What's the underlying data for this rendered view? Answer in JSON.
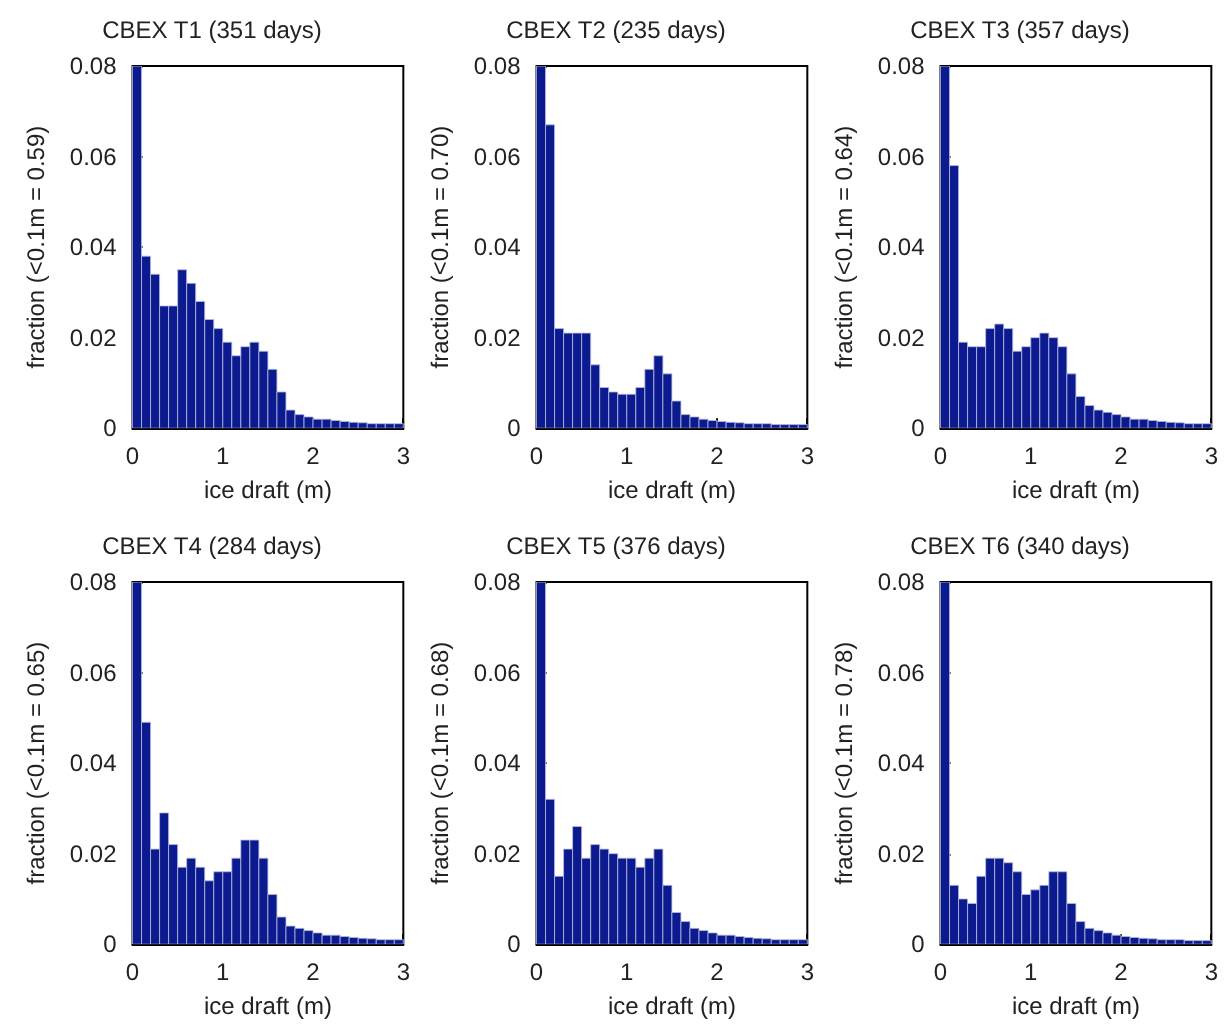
{
  "chart_data": [
    {
      "type": "histogram",
      "title": "CBEX T1 (351 days)",
      "xlabel": "ice draft (m)",
      "ylabel": "fraction (<0.1m = 0.59)",
      "color": "#0b1a8e",
      "bins": [
        0,
        0.1,
        0.2,
        0.3,
        0.4,
        0.5,
        0.6,
        0.7,
        0.8,
        0.9,
        1,
        1.1,
        1.2,
        1.3,
        1.4,
        1.5,
        1.6,
        1.7,
        1.8,
        1.9,
        2,
        2.1,
        2.2,
        2.3,
        2.4,
        2.5,
        2.6,
        2.7,
        2.8,
        2.9,
        3
      ],
      "values": [
        0.08,
        0.038,
        0.034,
        0.027,
        0.027,
        0.035,
        0.032,
        0.028,
        0.024,
        0.022,
        0.019,
        0.016,
        0.018,
        0.019,
        0.017,
        0.013,
        0.008,
        0.004,
        0.003,
        0.0025,
        0.002,
        0.002,
        0.0017,
        0.0015,
        0.0013,
        0.0012,
        0.001,
        0.001,
        0.001,
        0.001
      ],
      "xlim": [
        0,
        3
      ],
      "xticks": [
        0,
        1,
        2,
        3
      ],
      "ylim": [
        0,
        0.08
      ],
      "yticks": [
        0,
        0.02,
        0.04,
        0.06,
        0.08
      ]
    },
    {
      "type": "histogram",
      "title": "CBEX T2 (235 days)",
      "xlabel": "ice draft (m)",
      "ylabel": "fraction (<0.1m = 0.70)",
      "color": "#0b1a8e",
      "bins": [
        0,
        0.1,
        0.2,
        0.3,
        0.4,
        0.5,
        0.6,
        0.7,
        0.8,
        0.9,
        1,
        1.1,
        1.2,
        1.3,
        1.4,
        1.5,
        1.6,
        1.7,
        1.8,
        1.9,
        2,
        2.1,
        2.2,
        2.3,
        2.4,
        2.5,
        2.6,
        2.7,
        2.8,
        2.9,
        3
      ],
      "values": [
        0.08,
        0.067,
        0.022,
        0.021,
        0.021,
        0.021,
        0.014,
        0.009,
        0.008,
        0.0075,
        0.0075,
        0.009,
        0.013,
        0.016,
        0.012,
        0.006,
        0.003,
        0.0025,
        0.002,
        0.0017,
        0.0015,
        0.0013,
        0.0012,
        0.001,
        0.001,
        0.001,
        0.0008,
        0.0008,
        0.0008,
        0.0008
      ],
      "xlim": [
        0,
        3
      ],
      "xticks": [
        0,
        1,
        2,
        3
      ],
      "ylim": [
        0,
        0.08
      ],
      "yticks": [
        0,
        0.02,
        0.04,
        0.06,
        0.08
      ]
    },
    {
      "type": "histogram",
      "title": "CBEX T3 (357 days)",
      "xlabel": "ice draft (m)",
      "ylabel": "fraction (<0.1m = 0.64)",
      "color": "#0b1a8e",
      "bins": [
        0,
        0.1,
        0.2,
        0.3,
        0.4,
        0.5,
        0.6,
        0.7,
        0.8,
        0.9,
        1,
        1.1,
        1.2,
        1.3,
        1.4,
        1.5,
        1.6,
        1.7,
        1.8,
        1.9,
        2,
        2.1,
        2.2,
        2.3,
        2.4,
        2.5,
        2.6,
        2.7,
        2.8,
        2.9,
        3
      ],
      "values": [
        0.08,
        0.058,
        0.019,
        0.018,
        0.018,
        0.022,
        0.023,
        0.022,
        0.017,
        0.018,
        0.02,
        0.021,
        0.02,
        0.018,
        0.012,
        0.007,
        0.005,
        0.004,
        0.0035,
        0.003,
        0.0025,
        0.002,
        0.002,
        0.0017,
        0.0015,
        0.0013,
        0.0012,
        0.001,
        0.001,
        0.001
      ],
      "xlim": [
        0,
        3
      ],
      "xticks": [
        0,
        1,
        2,
        3
      ],
      "ylim": [
        0,
        0.08
      ],
      "yticks": [
        0,
        0.02,
        0.04,
        0.06,
        0.08
      ]
    },
    {
      "type": "histogram",
      "title": "CBEX T4 (284 days)",
      "xlabel": "ice draft (m)",
      "ylabel": "fraction (<0.1m = 0.65)",
      "color": "#0b1a8e",
      "bins": [
        0,
        0.1,
        0.2,
        0.3,
        0.4,
        0.5,
        0.6,
        0.7,
        0.8,
        0.9,
        1,
        1.1,
        1.2,
        1.3,
        1.4,
        1.5,
        1.6,
        1.7,
        1.8,
        1.9,
        2,
        2.1,
        2.2,
        2.3,
        2.4,
        2.5,
        2.6,
        2.7,
        2.8,
        2.9,
        3
      ],
      "values": [
        0.08,
        0.049,
        0.021,
        0.029,
        0.022,
        0.017,
        0.019,
        0.017,
        0.014,
        0.016,
        0.016,
        0.019,
        0.023,
        0.023,
        0.019,
        0.011,
        0.006,
        0.004,
        0.0035,
        0.003,
        0.0025,
        0.002,
        0.002,
        0.0017,
        0.0015,
        0.0013,
        0.0012,
        0.001,
        0.001,
        0.001
      ],
      "xlim": [
        0,
        3
      ],
      "xticks": [
        0,
        1,
        2,
        3
      ],
      "ylim": [
        0,
        0.08
      ],
      "yticks": [
        0,
        0.02,
        0.04,
        0.06,
        0.08
      ]
    },
    {
      "type": "histogram",
      "title": "CBEX T5 (376 days)",
      "xlabel": "ice draft (m)",
      "ylabel": "fraction (<0.1m = 0.68)",
      "color": "#0b1a8e",
      "bins": [
        0,
        0.1,
        0.2,
        0.3,
        0.4,
        0.5,
        0.6,
        0.7,
        0.8,
        0.9,
        1,
        1.1,
        1.2,
        1.3,
        1.4,
        1.5,
        1.6,
        1.7,
        1.8,
        1.9,
        2,
        2.1,
        2.2,
        2.3,
        2.4,
        2.5,
        2.6,
        2.7,
        2.8,
        2.9,
        3
      ],
      "values": [
        0.08,
        0.032,
        0.015,
        0.021,
        0.026,
        0.019,
        0.022,
        0.021,
        0.02,
        0.019,
        0.019,
        0.017,
        0.019,
        0.021,
        0.013,
        0.007,
        0.005,
        0.0035,
        0.003,
        0.0025,
        0.002,
        0.002,
        0.0017,
        0.0015,
        0.0013,
        0.0012,
        0.001,
        0.001,
        0.001,
        0.001
      ],
      "xlim": [
        0,
        3
      ],
      "xticks": [
        0,
        1,
        2,
        3
      ],
      "ylim": [
        0,
        0.08
      ],
      "yticks": [
        0,
        0.02,
        0.04,
        0.06,
        0.08
      ]
    },
    {
      "type": "histogram",
      "title": "CBEX T6 (340 days)",
      "xlabel": "ice draft (m)",
      "ylabel": "fraction (<0.1m = 0.78)",
      "color": "#0b1a8e",
      "bins": [
        0,
        0.1,
        0.2,
        0.3,
        0.4,
        0.5,
        0.6,
        0.7,
        0.8,
        0.9,
        1,
        1.1,
        1.2,
        1.3,
        1.4,
        1.5,
        1.6,
        1.7,
        1.8,
        1.9,
        2,
        2.1,
        2.2,
        2.3,
        2.4,
        2.5,
        2.6,
        2.7,
        2.8,
        2.9,
        3
      ],
      "values": [
        0.08,
        0.013,
        0.01,
        0.009,
        0.015,
        0.019,
        0.019,
        0.018,
        0.016,
        0.011,
        0.012,
        0.013,
        0.016,
        0.016,
        0.009,
        0.005,
        0.0035,
        0.003,
        0.0025,
        0.002,
        0.0017,
        0.0015,
        0.0013,
        0.0012,
        0.001,
        0.001,
        0.001,
        0.0008,
        0.0008,
        0.0008
      ],
      "xlim": [
        0,
        3
      ],
      "xticks": [
        0,
        1,
        2,
        3
      ],
      "ylim": [
        0,
        0.08
      ],
      "yticks": [
        0,
        0.02,
        0.04,
        0.06,
        0.08
      ]
    }
  ]
}
